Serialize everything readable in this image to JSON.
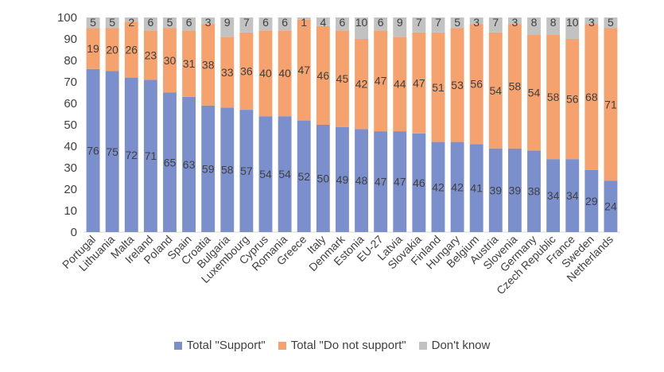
{
  "chart_data": {
    "type": "bar",
    "stacked": true,
    "categories": [
      "Portugal",
      "Lithuania",
      "Malta",
      "Ireland",
      "Poland",
      "Spain",
      "Croatia",
      "Bulgaria",
      "Luxembourg",
      "Cyprus",
      "Romania",
      "Greece",
      "Italy",
      "Denmark",
      "Estonia",
      "EU-27",
      "Latvia",
      "Slovakia",
      "Finland",
      "Hungary",
      "Belgium",
      "Austria",
      "Slovenia",
      "Germany",
      "Czech Republic",
      "France",
      "Sweden",
      "Netherlands"
    ],
    "series": [
      {
        "name": "Total \"Support\"",
        "color": "#7b8fcd",
        "values": [
          76,
          75,
          72,
          71,
          65,
          63,
          59,
          58,
          57,
          54,
          54,
          52,
          50,
          49,
          48,
          47,
          47,
          46,
          42,
          42,
          41,
          39,
          39,
          38,
          34,
          34,
          29,
          24
        ]
      },
      {
        "name": "Total \"Do not support\"",
        "color": "#f5a26e",
        "values": [
          19,
          20,
          26,
          23,
          30,
          31,
          38,
          33,
          36,
          40,
          40,
          47,
          46,
          45,
          42,
          47,
          44,
          47,
          51,
          53,
          56,
          54,
          58,
          54,
          58,
          56,
          68,
          71
        ]
      },
      {
        "name": "Don't know",
        "color": "#c2c2c2",
        "values": [
          5,
          5,
          2,
          6,
          5,
          6,
          3,
          9,
          7,
          6,
          6,
          1,
          4,
          6,
          10,
          6,
          9,
          7,
          7,
          5,
          3,
          7,
          3,
          8,
          8,
          10,
          3,
          5
        ]
      }
    ],
    "ylim": [
      0,
      100
    ],
    "yticks": [
      0,
      10,
      20,
      30,
      40,
      50,
      60,
      70,
      80,
      90,
      100
    ],
    "grid": false,
    "legend_position": "bottom"
  }
}
